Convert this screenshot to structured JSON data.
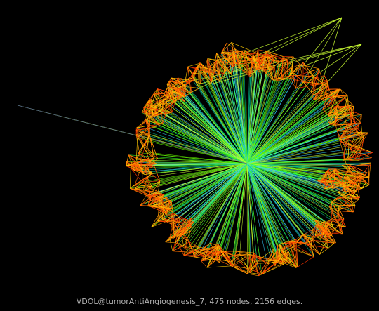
{
  "caption": "VDOL@tumorAntiAngiogenesis_7, 475 nodes, 2156 edges.",
  "colors": {
    "background": "#000000",
    "hub_spokes": [
      "#33ff33",
      "#66ff00",
      "#99ff33",
      "#ccff33",
      "#00cc99",
      "#33ccff"
    ],
    "cluster_edges": [
      "#ff3300",
      "#ff6600",
      "#ff9900",
      "#ffcc00"
    ],
    "long_edges": [
      "#ccff33",
      "#0000cc",
      "#33ffcc"
    ]
  }
}
